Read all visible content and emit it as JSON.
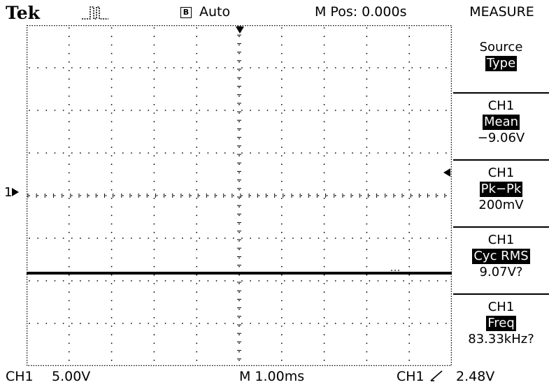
{
  "header": {
    "brand": "Tek",
    "acq_mode_icon": "B",
    "trigger_status": "Auto",
    "m_pos": "M Pos: 0.000s",
    "menu_title": "MEASURE"
  },
  "menu": {
    "items": [
      {
        "line1": "Source",
        "highlight": "Type",
        "value": ""
      },
      {
        "line1": "CH1",
        "highlight": "Mean",
        "value": "−9.06V"
      },
      {
        "line1": "CH1",
        "highlight": "Pk−Pk",
        "value": "200mV"
      },
      {
        "line1": "CH1",
        "highlight": "Cyc RMS",
        "value": "9.07V?"
      },
      {
        "line1": "CH1",
        "highlight": "Freq",
        "value": "83.33kHz?"
      }
    ]
  },
  "footer": {
    "channel": "CH1",
    "volts_div": "5.00V",
    "time_div": "M 1.00ms",
    "trigger_source": "CH1",
    "trigger_slope_icon": "rising-edge",
    "trigger_level": "2.48V"
  },
  "ground_marker": "1"
}
